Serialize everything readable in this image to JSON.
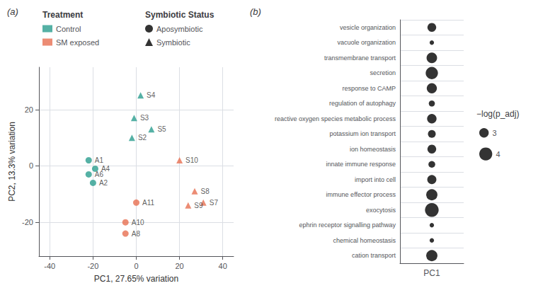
{
  "chart_data": [
    {
      "type": "scatter",
      "title": "(a)",
      "xlabel": "PC1, 27.65% variation",
      "ylabel": "PC2, 13.3% variation",
      "xlim": [
        -45,
        45
      ],
      "xticks": [
        -40,
        -20,
        0,
        20,
        40
      ],
      "ylim": [
        -32,
        35
      ],
      "yticks": [
        -20,
        0,
        20
      ],
      "grid": true,
      "legend": "top",
      "legends": [
        {
          "title": "Treatment",
          "entries": [
            {
              "name": "Control",
              "color": "#2a9d8f"
            },
            {
              "name": "SM exposed",
              "color": "#e76f51"
            }
          ]
        },
        {
          "title": "Symbiotic Status",
          "entries": [
            {
              "name": "Aposymbiotic",
              "marker": "circle",
              "color": "#000000"
            },
            {
              "name": "Symbiotic",
              "marker": "triangle",
              "color": "#000000"
            }
          ]
        }
      ],
      "points": [
        {
          "label": "A1",
          "x": -22,
          "y": 2,
          "color": "#2a9d8f",
          "marker": "circle"
        },
        {
          "label": "A4",
          "x": -19,
          "y": -1,
          "color": "#2a9d8f",
          "marker": "circle"
        },
        {
          "label": "A6",
          "x": -22,
          "y": -3,
          "color": "#2a9d8f",
          "marker": "circle"
        },
        {
          "label": "A2",
          "x": -20,
          "y": -6,
          "color": "#2a9d8f",
          "marker": "circle"
        },
        {
          "label": "S2",
          "x": -2,
          "y": 10,
          "color": "#2a9d8f",
          "marker": "triangle"
        },
        {
          "label": "S3",
          "x": -1,
          "y": 17,
          "color": "#2a9d8f",
          "marker": "triangle"
        },
        {
          "label": "S4",
          "x": 2,
          "y": 25,
          "color": "#2a9d8f",
          "marker": "triangle"
        },
        {
          "label": "S5",
          "x": 7,
          "y": 13,
          "color": "#2a9d8f",
          "marker": "triangle"
        },
        {
          "label": "A8",
          "x": -5,
          "y": -24,
          "color": "#e76f51",
          "marker": "circle"
        },
        {
          "label": "A10",
          "x": -5,
          "y": -20,
          "color": "#e76f51",
          "marker": "circle"
        },
        {
          "label": "A11",
          "x": 0,
          "y": -13,
          "color": "#e76f51",
          "marker": "circle"
        },
        {
          "label": "S10",
          "x": 20,
          "y": 2,
          "color": "#e76f51",
          "marker": "triangle"
        },
        {
          "label": "S7",
          "x": 31,
          "y": -13,
          "color": "#e76f51",
          "marker": "triangle"
        },
        {
          "label": "S8",
          "x": 27,
          "y": -9,
          "color": "#e76f51",
          "marker": "triangle"
        },
        {
          "label": "S9",
          "x": 24,
          "y": -14,
          "color": "#e76f51",
          "marker": "triangle"
        }
      ]
    },
    {
      "type": "dot",
      "title": "(b)",
      "x_categories": [
        "PC1"
      ],
      "categories": [
        "vesicle organization",
        "vacuole organization",
        "transmembrane transport",
        "secretion",
        "response to CAMP",
        "regulation of autophagy",
        "reactive oxygen species metabolic process",
        "potassium ion transport",
        "ion homeostasis",
        "innate immune response",
        "import into cell",
        "immune effector process",
        "exocytosis",
        "ephrin receptor signalling pathway",
        "chemical homeostasis",
        "cation transport"
      ],
      "values": [
        2.8,
        1.5,
        3.3,
        3.8,
        3.2,
        2.0,
        3.0,
        2.5,
        2.8,
        2.2,
        2.9,
        3.5,
        4.2,
        1.5,
        1.5,
        3.5
      ],
      "color": "#000000",
      "grid": true,
      "size_legend": {
        "title": "−log(p_adj)",
        "values": [
          3,
          4
        ]
      }
    }
  ]
}
